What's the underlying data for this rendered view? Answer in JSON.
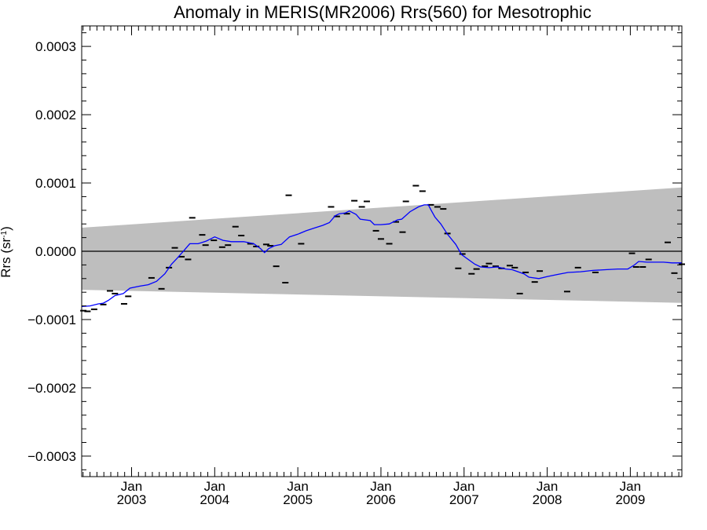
{
  "chart_data": {
    "type": "line",
    "title": "Anomaly in MERIS(MR2006) Rrs(560) for Mesotrophic",
    "ylabel": "Rrs (sr",
    "ylabel_sup": "-1",
    "ylabel_close": ")",
    "xlim": [
      2002.4,
      2009.62
    ],
    "ylim": [
      -0.00033,
      0.00033
    ],
    "y_ticks": [
      -0.0003,
      -0.0002,
      -0.0001,
      0.0,
      0.0001,
      0.0002,
      0.0003
    ],
    "y_tick_labels": [
      "−0.0003",
      "−0.0002",
      "−0.0001",
      "0.0000",
      "0.0001",
      "0.0002",
      "0.0003"
    ],
    "x_ticks": [
      {
        "x": 2003,
        "month": "Jan",
        "year": "2003"
      },
      {
        "x": 2004,
        "month": "Jan",
        "year": "2004"
      },
      {
        "x": 2005,
        "month": "Jan",
        "year": "2005"
      },
      {
        "x": 2006,
        "month": "Jan",
        "year": "2006"
      },
      {
        "x": 2007,
        "month": "Jan",
        "year": "2007"
      },
      {
        "x": 2008,
        "month": "Jan",
        "year": "2008"
      },
      {
        "x": 2009,
        "month": "Jan",
        "year": "2009"
      }
    ],
    "zero_line": 0,
    "band": {
      "color": "#bebebe",
      "upper": [
        [
          2002.4,
          3.45e-05
        ],
        [
          2009.62,
          9.35e-05
        ]
      ],
      "lower": [
        [
          2002.4,
          -5.65e-05
        ],
        [
          2009.62,
          -7.55e-05
        ]
      ]
    },
    "series": [
      {
        "style": "dash-markers",
        "color": "#000000",
        "points": [
          [
            2002.42,
            -8.7e-05
          ],
          [
            2002.47,
            -8.8e-05
          ],
          [
            2002.55,
            -8.5e-05
          ],
          [
            2002.66,
            -7.8e-05
          ],
          [
            2002.74,
            -5.8e-05
          ],
          [
            2002.8,
            -6.2e-05
          ],
          [
            2002.91,
            -7.7e-05
          ],
          [
            2002.96,
            -6.6e-05
          ],
          [
            2003.24,
            -3.9e-05
          ],
          [
            2003.36,
            -5.5e-05
          ],
          [
            2003.45,
            -2.4e-05
          ],
          [
            2003.52,
            5e-06
          ],
          [
            2003.6,
            -8e-06
          ],
          [
            2003.68,
            -1.2e-05
          ],
          [
            2003.73,
            4.9e-05
          ],
          [
            2003.85,
            2.4e-05
          ],
          [
            2003.89,
            9e-06
          ],
          [
            2003.99,
            1.6e-05
          ],
          [
            2004.09,
            6e-06
          ],
          [
            2004.16,
            9e-06
          ],
          [
            2004.25,
            3.6e-05
          ],
          [
            2004.32,
            2.3e-05
          ],
          [
            2004.43,
            1.1e-05
          ],
          [
            2004.5,
            7e-06
          ],
          [
            2004.62,
            1e-05
          ],
          [
            2004.67,
            8e-06
          ],
          [
            2004.74,
            -2.2e-05
          ],
          [
            2004.85,
            -4.6e-05
          ],
          [
            2004.89,
            8.2e-05
          ],
          [
            2005.04,
            1.1e-05
          ],
          [
            2005.4,
            6.5e-05
          ],
          [
            2005.47,
            5.1e-05
          ],
          [
            2005.59,
            5.5e-05
          ],
          [
            2005.68,
            7.4e-05
          ],
          [
            2005.77,
            6.5e-05
          ],
          [
            2005.83,
            7.3e-05
          ],
          [
            2005.94,
            3e-05
          ],
          [
            2006.0,
            1.8e-05
          ],
          [
            2006.1,
            1.1e-05
          ],
          [
            2006.18,
            4.3e-05
          ],
          [
            2006.26,
            2.8e-05
          ],
          [
            2006.3,
            7.3e-05
          ],
          [
            2006.42,
            9.6e-05
          ],
          [
            2006.5,
            8.8e-05
          ],
          [
            2006.6,
            6.8e-05
          ],
          [
            2006.68,
            6.5e-05
          ],
          [
            2006.75,
            6.2e-05
          ],
          [
            2006.8,
            2.6e-05
          ],
          [
            2006.93,
            -2.5e-05
          ],
          [
            2006.98,
            -4e-06
          ],
          [
            2007.09,
            -3.3e-05
          ],
          [
            2007.15,
            -2.6e-05
          ],
          [
            2007.25,
            -2.2e-05
          ],
          [
            2007.3,
            -1.8e-05
          ],
          [
            2007.38,
            -2.2e-05
          ],
          [
            2007.45,
            -2.5e-05
          ],
          [
            2007.55,
            -2.1e-05
          ],
          [
            2007.61,
            -2.4e-05
          ],
          [
            2007.67,
            -6.2e-05
          ],
          [
            2007.74,
            -3.1e-05
          ],
          [
            2007.85,
            -4.5e-05
          ],
          [
            2007.91,
            -2.9e-05
          ],
          [
            2008.24,
            -5.9e-05
          ],
          [
            2008.37,
            -2.4e-05
          ],
          [
            2008.58,
            -3.1e-05
          ],
          [
            2009.02,
            -3e-06
          ],
          [
            2009.07,
            -2.3e-05
          ],
          [
            2009.15,
            -2.3e-05
          ],
          [
            2009.22,
            -1.2e-05
          ],
          [
            2009.45,
            1.3e-05
          ],
          [
            2009.53,
            -3.2e-05
          ],
          [
            2009.62,
            -1.9e-05
          ]
        ]
      },
      {
        "style": "line",
        "color": "#0000ff",
        "points": [
          [
            2002.4,
            -8.1e-05
          ],
          [
            2002.5,
            -8e-05
          ],
          [
            2002.6,
            -7.7e-05
          ],
          [
            2002.66,
            -7.6e-05
          ],
          [
            2002.72,
            -7.2e-05
          ],
          [
            2002.8,
            -6.5e-05
          ],
          [
            2002.9,
            -6.2e-05
          ],
          [
            2002.98,
            -5.4e-05
          ],
          [
            2003.1,
            -5.1e-05
          ],
          [
            2003.2,
            -4.9e-05
          ],
          [
            2003.3,
            -4.4e-05
          ],
          [
            2003.4,
            -3.3e-05
          ],
          [
            2003.48,
            -1.9e-05
          ],
          [
            2003.55,
            -1e-05
          ],
          [
            2003.63,
            1e-06
          ],
          [
            2003.7,
            1.1e-05
          ],
          [
            2003.8,
            1.1e-05
          ],
          [
            2003.9,
            1.5e-05
          ],
          [
            2004.0,
            2.1e-05
          ],
          [
            2004.1,
            1.6e-05
          ],
          [
            2004.2,
            1.4e-05
          ],
          [
            2004.35,
            1.4e-05
          ],
          [
            2004.47,
            1.1e-05
          ],
          [
            2004.55,
            4e-06
          ],
          [
            2004.6,
            -2e-06
          ],
          [
            2004.65,
            4e-06
          ],
          [
            2004.72,
            8e-06
          ],
          [
            2004.8,
            1e-05
          ],
          [
            2004.9,
            2.1e-05
          ],
          [
            2005.0,
            2.5e-05
          ],
          [
            2005.1,
            3e-05
          ],
          [
            2005.2,
            3.4e-05
          ],
          [
            2005.3,
            3.8e-05
          ],
          [
            2005.38,
            4.2e-05
          ],
          [
            2005.45,
            5.2e-05
          ],
          [
            2005.5,
            5.5e-05
          ],
          [
            2005.57,
            5.6e-05
          ],
          [
            2005.62,
            5.9e-05
          ],
          [
            2005.7,
            5.4e-05
          ],
          [
            2005.75,
            4.7e-05
          ],
          [
            2005.87,
            4.5e-05
          ],
          [
            2005.92,
            3.9e-05
          ],
          [
            2006.0,
            3.9e-05
          ],
          [
            2006.1,
            4e-05
          ],
          [
            2006.2,
            4.6e-05
          ],
          [
            2006.25,
            4.7e-05
          ],
          [
            2006.35,
            5.8e-05
          ],
          [
            2006.45,
            6.5e-05
          ],
          [
            2006.52,
            6.8e-05
          ],
          [
            2006.57,
            6.8e-05
          ],
          [
            2006.6,
            6.1e-05
          ],
          [
            2006.65,
            5e-05
          ],
          [
            2006.72,
            4e-05
          ],
          [
            2006.8,
            2.5e-05
          ],
          [
            2006.9,
            1e-05
          ],
          [
            2006.97,
            -5e-06
          ],
          [
            2007.05,
            -1.2e-05
          ],
          [
            2007.13,
            -1.9e-05
          ],
          [
            2007.2,
            -2.3e-05
          ],
          [
            2007.3,
            -2.4e-05
          ],
          [
            2007.4,
            -2.3e-05
          ],
          [
            2007.5,
            -2.6e-05
          ],
          [
            2007.58,
            -2.7e-05
          ],
          [
            2007.65,
            -3e-05
          ],
          [
            2007.72,
            -3.3e-05
          ],
          [
            2007.78,
            -3.8e-05
          ],
          [
            2007.9,
            -4e-05
          ],
          [
            2008.0,
            -3.7e-05
          ],
          [
            2008.12,
            -3.4e-05
          ],
          [
            2008.25,
            -3.1e-05
          ],
          [
            2008.4,
            -3e-05
          ],
          [
            2008.55,
            -2.8e-05
          ],
          [
            2008.7,
            -2.7e-05
          ],
          [
            2008.85,
            -2.6e-05
          ],
          [
            2008.97,
            -2.6e-05
          ],
          [
            2009.05,
            -2e-05
          ],
          [
            2009.1,
            -1.5e-05
          ],
          [
            2009.2,
            -1.6e-05
          ],
          [
            2009.3,
            -1.6e-05
          ],
          [
            2009.4,
            -1.6e-05
          ],
          [
            2009.5,
            -1.7e-05
          ],
          [
            2009.62,
            -1.7e-05
          ]
        ]
      }
    ],
    "grid": false,
    "legend": "none"
  }
}
